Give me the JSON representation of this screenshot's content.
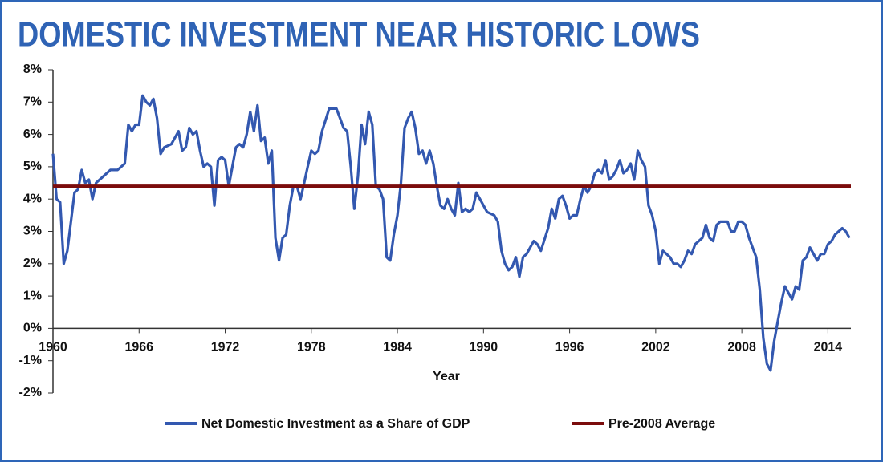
{
  "chart_data": {
    "type": "line",
    "title": "DOMESTIC INVESTMENT NEAR HISTORIC LOWS",
    "x_label": "Year",
    "xlim": [
      1960,
      2015.6
    ],
    "xticks": [
      1960,
      1966,
      1972,
      1978,
      1984,
      1990,
      1996,
      2002,
      2008,
      2014
    ],
    "ylim": [
      -2,
      8
    ],
    "yticks": [
      {
        "value": -2,
        "label": "-2%"
      },
      {
        "value": -1,
        "label": "-1%"
      },
      {
        "value": 0,
        "label": "0%"
      },
      {
        "value": 1,
        "label": "1%"
      },
      {
        "value": 2,
        "label": "2%"
      },
      {
        "value": 3,
        "label": "3%"
      },
      {
        "value": 4,
        "label": "4%"
      },
      {
        "value": 5,
        "label": "5%"
      },
      {
        "value": 6,
        "label": "6%"
      },
      {
        "value": 7,
        "label": "7%"
      },
      {
        "value": 8,
        "label": "8%"
      }
    ],
    "series": [
      {
        "name": "Net Domestic Investment as a Share of GDP",
        "color": "#3358b0",
        "x": [
          1960,
          1960.25,
          1960.5,
          1960.75,
          1961,
          1961.5,
          1961.75,
          1962,
          1962.25,
          1962.5,
          1962.75,
          1963,
          1963.5,
          1964,
          1964.5,
          1965,
          1965.25,
          1965.5,
          1965.75,
          1966,
          1966.25,
          1966.5,
          1966.75,
          1967,
          1967.25,
          1967.5,
          1967.75,
          1968.25,
          1968.75,
          1969,
          1969.25,
          1969.5,
          1969.75,
          1970,
          1970.25,
          1970.5,
          1970.75,
          1971,
          1971.25,
          1971.5,
          1971.75,
          1972,
          1972.25,
          1972.75,
          1973,
          1973.25,
          1973.5,
          1973.75,
          1974,
          1974.25,
          1974.5,
          1974.75,
          1975,
          1975.25,
          1975.5,
          1975.75,
          1976,
          1976.25,
          1976.5,
          1976.75,
          1977,
          1977.25,
          1977.5,
          1977.75,
          1978,
          1978.25,
          1978.5,
          1978.75,
          1979.25,
          1979.5,
          1979.75,
          1980,
          1980.25,
          1980.5,
          1980.75,
          1981,
          1981.25,
          1981.5,
          1981.75,
          1982,
          1982.25,
          1982.5,
          1982.75,
          1983,
          1983.25,
          1983.5,
          1983.75,
          1984,
          1984.25,
          1984.5,
          1984.75,
          1985,
          1985.25,
          1985.5,
          1985.75,
          1986,
          1986.25,
          1986.5,
          1986.75,
          1987,
          1987.25,
          1987.5,
          1987.75,
          1988,
          1988.25,
          1988.5,
          1988.75,
          1989,
          1989.25,
          1989.5,
          1989.75,
          1990.25,
          1990.75,
          1991,
          1991.25,
          1991.5,
          1991.75,
          1992,
          1992.25,
          1992.5,
          1992.75,
          1993,
          1993.5,
          1993.75,
          1994,
          1994.5,
          1994.75,
          1995,
          1995.25,
          1995.5,
          1995.75,
          1996,
          1996.25,
          1996.5,
          1996.75,
          1997,
          1997.25,
          1997.5,
          1997.75,
          1998,
          1998.25,
          1998.5,
          1998.75,
          1999,
          1999.25,
          1999.5,
          1999.75,
          2000,
          2000.25,
          2000.5,
          2000.75,
          2001,
          2001.25,
          2001.5,
          2001.75,
          2002,
          2002.25,
          2002.5,
          2002.75,
          2003,
          2003.25,
          2003.5,
          2003.75,
          2004,
          2004.25,
          2004.5,
          2004.75,
          2005,
          2005.25,
          2005.5,
          2005.75,
          2006,
          2006.25,
          2006.5,
          2006.75,
          2007,
          2007.25,
          2007.5,
          2007.75,
          2008,
          2008.25,
          2008.5,
          2008.75,
          2009,
          2009.25,
          2009.5,
          2009.75,
          2010,
          2010.25,
          2010.5,
          2010.75,
          2011,
          2011.25,
          2011.5,
          2011.75,
          2012,
          2012.25,
          2012.5,
          2012.75,
          2013,
          2013.25,
          2013.5,
          2013.75,
          2014,
          2014.25,
          2014.5,
          2014.75,
          2015,
          2015.25,
          2015.5
        ],
        "values": [
          5.4,
          4.0,
          3.9,
          2.0,
          2.4,
          4.2,
          4.3,
          4.9,
          4.5,
          4.6,
          4.0,
          4.5,
          4.7,
          4.9,
          4.9,
          5.1,
          6.3,
          6.1,
          6.3,
          6.3,
          7.2,
          7.0,
          6.9,
          7.1,
          6.5,
          5.4,
          5.6,
          5.7,
          6.1,
          5.5,
          5.6,
          6.2,
          6.0,
          6.1,
          5.5,
          5.0,
          5.1,
          5.0,
          3.8,
          5.2,
          5.3,
          5.2,
          4.4,
          5.6,
          5.7,
          5.6,
          6.0,
          6.7,
          6.1,
          6.9,
          5.8,
          5.9,
          5.1,
          5.5,
          2.8,
          2.1,
          2.8,
          2.9,
          3.8,
          4.4,
          4.4,
          4.0,
          4.5,
          5.0,
          5.5,
          5.4,
          5.5,
          6.1,
          6.8,
          6.8,
          6.8,
          6.5,
          6.2,
          6.1,
          5.0,
          3.7,
          4.7,
          6.3,
          5.7,
          6.7,
          6.3,
          4.4,
          4.3,
          4.0,
          2.2,
          2.1,
          2.9,
          3.5,
          4.5,
          6.2,
          6.5,
          6.7,
          6.2,
          5.4,
          5.5,
          5.1,
          5.5,
          5.1,
          4.4,
          3.8,
          3.7,
          4.0,
          3.7,
          3.5,
          4.5,
          3.6,
          3.7,
          3.6,
          3.7,
          4.2,
          4.0,
          3.6,
          3.5,
          3.3,
          2.4,
          2.0,
          1.8,
          1.9,
          2.2,
          1.6,
          2.2,
          2.3,
          2.7,
          2.6,
          2.4,
          3.1,
          3.7,
          3.4,
          4.0,
          4.1,
          3.8,
          3.4,
          3.5,
          3.5,
          4.0,
          4.4,
          4.2,
          4.4,
          4.8,
          4.9,
          4.8,
          5.2,
          4.6,
          4.7,
          4.9,
          5.2,
          4.8,
          4.9,
          5.1,
          4.6,
          5.5,
          5.2,
          5.0,
          3.8,
          3.5,
          3.0,
          2.0,
          2.4,
          2.3,
          2.2,
          2.0,
          2.0,
          1.9,
          2.1,
          2.4,
          2.3,
          2.6,
          2.7,
          2.8,
          3.2,
          2.8,
          2.7,
          3.2,
          3.3,
          3.3,
          3.3,
          3.0,
          3.0,
          3.3,
          3.3,
          3.2,
          2.8,
          2.5,
          2.2,
          1.2,
          -0.3,
          -1.1,
          -1.3,
          -0.4,
          0.2,
          0.8,
          1.3,
          1.1,
          0.9,
          1.3,
          1.2,
          2.1,
          2.2,
          2.5,
          2.3,
          2.1,
          2.3,
          2.3,
          2.6,
          2.7,
          2.9,
          3.0,
          3.1,
          3.0,
          2.8
        ]
      }
    ],
    "reference_line": {
      "name": "Pre-2008 Average",
      "color": "#7b0c0c",
      "value": 4.4
    }
  }
}
